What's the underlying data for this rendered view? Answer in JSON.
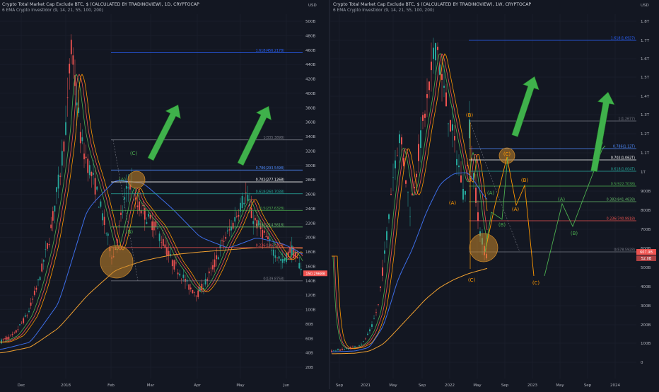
{
  "colors": {
    "background": "#131722",
    "grid": "#1e2230",
    "axis_text": "#b2b5be",
    "candle_up": "#26a69a",
    "candle_down": "#ef5350",
    "ema_9": "#4caf50",
    "ema_14": "#ef5350",
    "ema_21": "#ff9800",
    "ema_55": "#3d6ee8",
    "ema_100": "#a5a5a5",
    "ema_200": "#f0a030",
    "fib_1618": "#2962ff",
    "fib_0786": "#4f8cff",
    "fib_0702": "#ffffff",
    "fib_0618": "#26a69a",
    "fib_05": "#4caf50",
    "fib_0382": "#66bb6a",
    "fib_0236": "#ef5350",
    "fib_0": "#787b86",
    "wave_orange": "#ff9800",
    "wave_green": "#4caf50",
    "arrow_green": "#3fb14b",
    "circle_fill": "#c8862a"
  },
  "left": {
    "title": "Crypto Total Market Cap Exclude BTC, $ (CALCULATED BY TRADINGVIEW), 1D, CRYPTOCAP",
    "subtitle": "6 EMA Crypto Investidor (9, 14, 21, 55, 100, 200)",
    "currency": "USD",
    "y_ticks": [
      "500B",
      "480B",
      "460B",
      "440B",
      "420B",
      "400B",
      "380B",
      "360B",
      "340B",
      "320B",
      "300B",
      "280B",
      "260B",
      "240B",
      "220B",
      "200B",
      "180B",
      "160B",
      "140B",
      "120B",
      "100B",
      "80B",
      "60B",
      "40B",
      "20B"
    ],
    "x_ticks": [
      "Dec",
      "2018",
      "Feb",
      "Mar",
      "Apr",
      "May",
      "Jun"
    ],
    "fib_labels": [
      "1.618(456.2178)",
      "1(335.3898)",
      "0.786(293.5498)",
      "0.702(277.1268)",
      "0.618(260.7038)",
      "0.5(237.6328)",
      "0.382(214.5618)",
      "0.236(186.0168)",
      "0(139.8758)"
    ],
    "wave_labels": [
      "(C)",
      "(A)",
      "(B)"
    ],
    "price_labels": [
      "150.2968B"
    ]
  },
  "right": {
    "title": "Crypto Total Market Cap Exclude BTC, $ (CALCULATED BY TRADINGVIEW), 1W, CRYPTOCAP",
    "subtitle": "6 EMA Crypto Investidor (9, 14, 21, 55, 100, 200)",
    "currency": "USD",
    "y_ticks": [
      "1.8T",
      "1.7T",
      "1.6T",
      "1.5T",
      "1.4T",
      "1.3T",
      "1.2T",
      "1.1T",
      "1T",
      "900B",
      "800B",
      "700B",
      "600B",
      "500B",
      "400B",
      "300B",
      "200B",
      "100B",
      "0"
    ],
    "x_ticks": [
      "Sep",
      "2021",
      "May",
      "Sep",
      "2022",
      "May",
      "Sep",
      "2023",
      "May",
      "Sep",
      "2024"
    ],
    "fib_labels": [
      "1.618(1.6927)",
      "1(1.2677)",
      "0.786(1.12T)",
      "0.702(1.062T)",
      "0.618(1.004T)",
      "0.5(922.7038)",
      "0.382(841.4838)",
      "0.236(740.9918)",
      "0(578.5928)"
    ],
    "wave_labels_orange": [
      "(B)",
      "(A)",
      "(C)",
      "(C)",
      "(B)",
      "(A)",
      "(C)"
    ],
    "wave_labels_green": [
      "(A)",
      "(B)",
      "(A)",
      "(B)",
      "(C)"
    ],
    "price_labels": [
      "607.9B",
      "52.0B"
    ]
  },
  "chart_data": [
    {
      "type": "line",
      "title": "Crypto Total Market Cap Exclude BTC, $ (CALCULATED BY TRADINGVIEW), 1D, CRYPTOCAP",
      "timeframe": "1D",
      "unit": "B USD",
      "ylim": [
        0,
        520
      ],
      "x_labels": [
        "Dec",
        "2018",
        "Feb",
        "Mar",
        "Apr",
        "May",
        "Jun"
      ],
      "series": [
        {
          "name": "Total market cap excl. BTC",
          "values": [
            55,
            62,
            75,
            90,
            110,
            135,
            160,
            200,
            250,
            300,
            340,
            400,
            450,
            465,
            420,
            380,
            360,
            320,
            280,
            250,
            230,
            200,
            230,
            270,
            280,
            240,
            230,
            210,
            215,
            200,
            180,
            170,
            160,
            150,
            140,
            130,
            125,
            128,
            140,
            170,
            200,
            210,
            230,
            240,
            250,
            255,
            230,
            210,
            200,
            185,
            180,
            175,
            160,
            150,
            140
          ]
        },
        {
          "name": "EMA 200",
          "values": [
            40,
            42,
            45,
            50,
            56,
            64,
            74,
            86,
            100,
            115,
            130,
            142,
            150,
            156,
            160,
            162,
            164,
            166,
            168,
            170,
            172,
            174,
            176,
            178,
            180,
            181,
            182,
            183,
            184,
            185,
            185,
            185,
            186,
            186,
            186,
            186,
            186,
            186,
            186,
            186,
            186,
            186,
            186,
            186,
            186,
            186,
            186,
            186,
            186,
            186,
            186,
            186,
            185,
            185,
            185
          ]
        }
      ],
      "fib_levels": {
        "1.618": 456.2178,
        "1": 335.3898,
        "0.786": 293.5498,
        "0.702": 277.1268,
        "0.618": 260.7038,
        "0.5": 237.6328,
        "0.382": 214.5618,
        "0.236": 186.0168,
        "0": 139.8758
      },
      "last_value": 150.2968
    },
    {
      "type": "line",
      "title": "Crypto Total Market Cap Exclude BTC, $ (CALCULATED BY TRADINGVIEW), 1W, CRYPTOCAP",
      "timeframe": "1W",
      "unit": "B USD",
      "scale": "log",
      "x_labels": [
        "Sep",
        "2021",
        "May",
        "Sep",
        "2022",
        "May",
        "Sep",
        "2023",
        "May",
        "Sep",
        "2024"
      ],
      "series": [
        {
          "name": "Total market cap excl. BTC",
          "values": [
            110,
            120,
            135,
            160,
            220,
            320,
            500,
            650,
            800,
            1000,
            1200,
            1500,
            1600,
            1700,
            1400,
            1200,
            1000,
            900,
            800,
            780,
            850,
            900,
            1000,
            1100,
            1200,
            1000,
            900,
            800,
            700,
            650,
            600,
            580
          ]
        },
        {
          "name": "EMA 200",
          "values": [
            95,
            96,
            98,
            100,
            104,
            110,
            118,
            128,
            140,
            160,
            185,
            210,
            240,
            270,
            300,
            330,
            360,
            390,
            420,
            450,
            480,
            500,
            520,
            540,
            555,
            565,
            575,
            580,
            585,
            590,
            595,
            600
          ]
        }
      ],
      "fib_levels": {
        "1.618": 1692.7,
        "1": 1267.7,
        "0.786": 1120,
        "0.702": 1062,
        "0.618": 1004,
        "0.5": 922.7038,
        "0.382": 841.4838,
        "0.236": 740.9918,
        "0": 578.5928
      },
      "last_value": 607.9
    }
  ]
}
